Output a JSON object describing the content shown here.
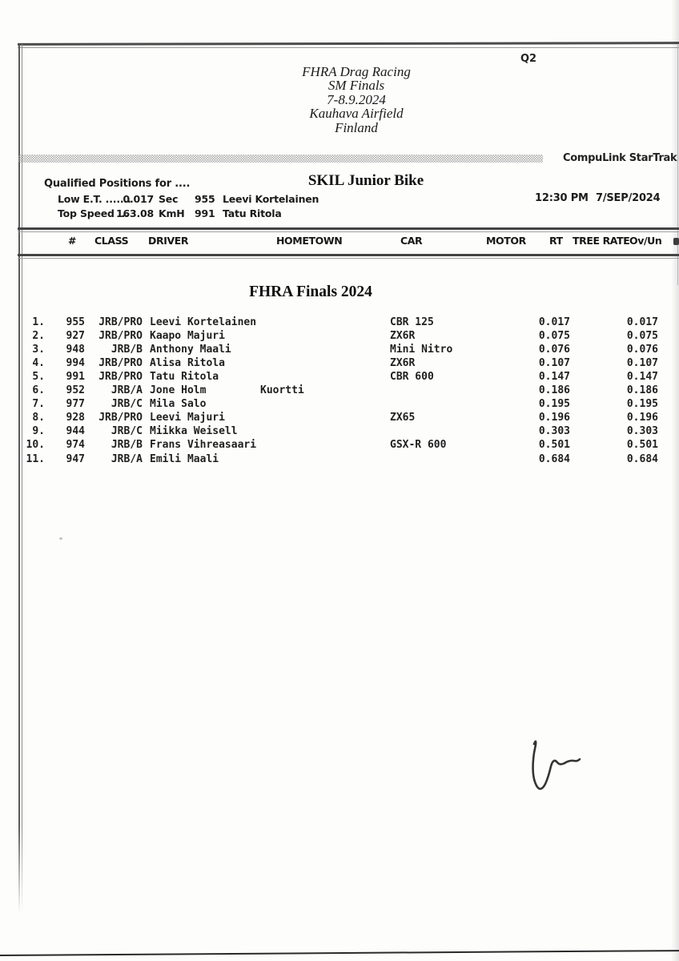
{
  "session_label": "Q2",
  "event_header": {
    "line1": "FHRA Drag Racing",
    "line2": "SM Finals",
    "line3": "7-8.9.2024",
    "line4": "Kauhava Airfield",
    "line5": "Finland"
  },
  "brand": "CompuLink StarTrak",
  "qualifying": {
    "qualified_positions_label": "Qualified Positions for ....",
    "class_title": "SKIL Junior Bike",
    "low_et_label": "Low E.T. .......",
    "low_et_value": "0.017",
    "low_et_unit": "Sec",
    "low_et_holder_num": "955",
    "low_et_holder_name": "Leevi Kortelainen",
    "top_speed_label": "Top Speed ...",
    "top_speed_value": "163.08",
    "top_speed_unit": "KmH",
    "top_speed_holder_num": "991",
    "top_speed_holder_name": "Tatu Ritola",
    "time": "12:30 PM",
    "date": "7/SEP/2024"
  },
  "table": {
    "headers": [
      "#",
      "CLASS",
      "DRIVER",
      "HOMETOWN",
      "CAR",
      "MOTOR",
      "RT",
      "TREE RATE",
      "Ov/Un"
    ],
    "section_title": "FHRA Finals 2024",
    "rows": [
      {
        "pos": "1.",
        "num": "955",
        "cls": "JRB/PRO",
        "driver": "Leevi Kortelainen",
        "hometown": "",
        "car": "CBR 125",
        "motor": "",
        "rt": "0.017",
        "tree_rate": "",
        "ovun": "0.017"
      },
      {
        "pos": "2.",
        "num": "927",
        "cls": "JRB/PRO",
        "driver": "Kaapo Majuri",
        "hometown": "",
        "car": "ZX6R",
        "motor": "",
        "rt": "0.075",
        "tree_rate": "",
        "ovun": "0.075"
      },
      {
        "pos": "3.",
        "num": "948",
        "cls": "JRB/B",
        "driver": "Anthony Maali",
        "hometown": "",
        "car": "Mini Nitro",
        "motor": "",
        "rt": "0.076",
        "tree_rate": "",
        "ovun": "0.076"
      },
      {
        "pos": "4.",
        "num": "994",
        "cls": "JRB/PRO",
        "driver": "Alisa Ritola",
        "hometown": "",
        "car": "ZX6R",
        "motor": "",
        "rt": "0.107",
        "tree_rate": "",
        "ovun": "0.107"
      },
      {
        "pos": "5.",
        "num": "991",
        "cls": "JRB/PRO",
        "driver": "Tatu Ritola",
        "hometown": "",
        "car": "CBR 600",
        "motor": "",
        "rt": "0.147",
        "tree_rate": "",
        "ovun": "0.147"
      },
      {
        "pos": "6.",
        "num": "952",
        "cls": "JRB/A",
        "driver": "Jone Holm",
        "hometown": "Kuortti",
        "car": "",
        "motor": "",
        "rt": "0.186",
        "tree_rate": "",
        "ovun": "0.186"
      },
      {
        "pos": "7.",
        "num": "977",
        "cls": "JRB/C",
        "driver": "Mila Salo",
        "hometown": "",
        "car": "",
        "motor": "",
        "rt": "0.195",
        "tree_rate": "",
        "ovun": "0.195"
      },
      {
        "pos": "8.",
        "num": "928",
        "cls": "JRB/PRO",
        "driver": "Leevi Majuri",
        "hometown": "",
        "car": "ZX65",
        "motor": "",
        "rt": "0.196",
        "tree_rate": "",
        "ovun": "0.196"
      },
      {
        "pos": "9.",
        "num": "944",
        "cls": "JRB/C",
        "driver": "Miikka Weisell",
        "hometown": "",
        "car": "",
        "motor": "",
        "rt": "0.303",
        "tree_rate": "",
        "ovun": "0.303"
      },
      {
        "pos": "10.",
        "num": "974",
        "cls": "JRB/B",
        "driver": "Frans Vihreasaari",
        "hometown": "",
        "car": "GSX-R 600",
        "motor": "",
        "rt": "0.501",
        "tree_rate": "",
        "ovun": "0.501"
      },
      {
        "pos": "11.",
        "num": "947",
        "cls": "JRB/A",
        "driver": "Emili Maali",
        "hometown": "",
        "car": "",
        "motor": "",
        "rt": "0.684",
        "tree_rate": "",
        "ovun": "0.684"
      }
    ]
  }
}
